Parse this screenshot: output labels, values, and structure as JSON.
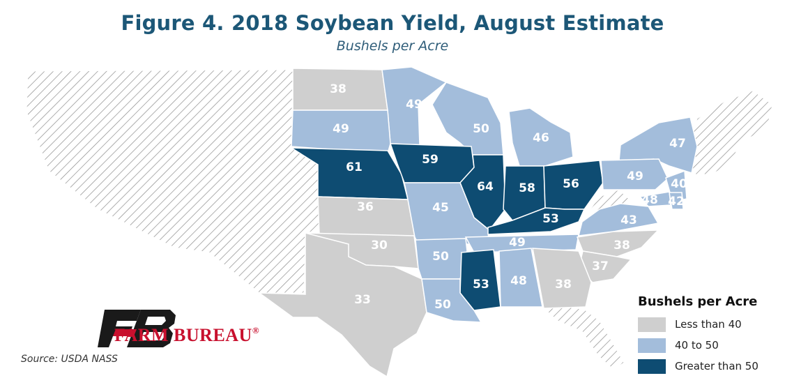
{
  "title": "Figure 4. 2018 Soybean Yield, August Estimate",
  "subtitle": "Bushels per Acre",
  "source": "Source: USDA NASS",
  "logo": {
    "text": "FARM BUREAU",
    "registered": "®"
  },
  "colors": {
    "low": "#cfcfcf",
    "mid": "#a3bddb",
    "high": "#0e4c72",
    "hatch": "#8c8c8c",
    "title": "#1c5777"
  },
  "legend": {
    "title": "Bushels per Acre",
    "items": [
      {
        "label": "Less than 40",
        "category": "low"
      },
      {
        "label": "40 to 50",
        "category": "mid"
      },
      {
        "label": "Greater than 50",
        "category": "high"
      }
    ]
  },
  "chart_data": {
    "type": "choropleth",
    "unit": "Bushels per Acre",
    "states": [
      {
        "value": "38",
        "category": "low"
      },
      {
        "value": "49",
        "category": "mid"
      },
      {
        "value": "49",
        "category": "mid"
      },
      {
        "value": "50",
        "category": "mid"
      },
      {
        "value": "46",
        "category": "mid"
      },
      {
        "value": "47",
        "category": "mid"
      },
      {
        "value": "61",
        "category": "high"
      },
      {
        "value": "59",
        "category": "high"
      },
      {
        "value": "64",
        "category": "high"
      },
      {
        "value": "58",
        "category": "high"
      },
      {
        "value": "56",
        "category": "high"
      },
      {
        "value": "49",
        "category": "mid"
      },
      {
        "value": "40",
        "category": "mid"
      },
      {
        "value": "48",
        "category": "mid"
      },
      {
        "value": "42",
        "category": "mid"
      },
      {
        "value": "36",
        "category": "low"
      },
      {
        "value": "45",
        "category": "mid"
      },
      {
        "value": "53",
        "category": "high"
      },
      {
        "value": "43",
        "category": "mid"
      },
      {
        "value": "30",
        "category": "low"
      },
      {
        "value": "50",
        "category": "mid"
      },
      {
        "value": "49",
        "category": "mid"
      },
      {
        "value": "38",
        "category": "low"
      },
      {
        "value": "37",
        "category": "low"
      },
      {
        "value": "53",
        "category": "high"
      },
      {
        "value": "48",
        "category": "mid"
      },
      {
        "value": "38",
        "category": "low"
      },
      {
        "value": "33",
        "category": "low"
      },
      {
        "value": "50",
        "category": "mid"
      }
    ]
  }
}
